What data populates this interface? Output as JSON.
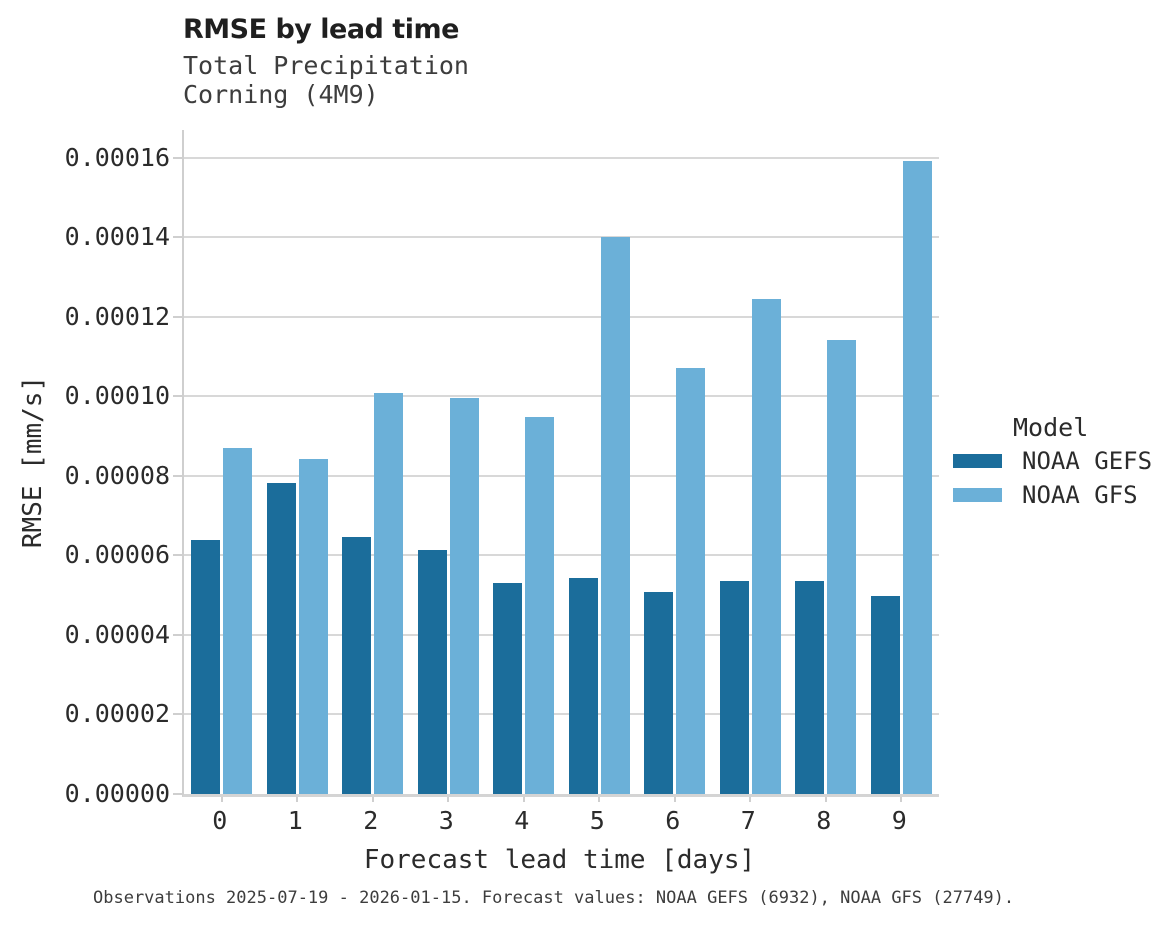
{
  "chart_data": {
    "type": "bar",
    "title": "RMSE by lead time",
    "subtitle_lines": [
      "Total Precipitation",
      "Corning (4M9)"
    ],
    "xlabel": "Forecast lead time [days]",
    "ylabel": "RMSE [mm/s]",
    "categories": [
      "0",
      "1",
      "2",
      "3",
      "4",
      "5",
      "6",
      "7",
      "8",
      "9"
    ],
    "series": [
      {
        "name": "NOAA GEFS",
        "color": "#1B6D9B",
        "values": [
          6.38e-05,
          7.82e-05,
          6.46e-05,
          6.13e-05,
          5.31e-05,
          5.43e-05,
          5.09e-05,
          5.37e-05,
          5.35e-05,
          4.97e-05
        ]
      },
      {
        "name": "NOAA GFS",
        "color": "#6BB0D8",
        "values": [
          8.7e-05,
          8.42e-05,
          0.0001008,
          9.96e-05,
          9.48e-05,
          0.00014,
          0.0001072,
          0.0001246,
          0.0001143,
          0.0001591
        ]
      }
    ],
    "ylim": [
      0,
      0.000167
    ],
    "yticks": {
      "values": [
        0,
        2e-05,
        4e-05,
        6e-05,
        8e-05,
        0.0001,
        0.00012,
        0.00014,
        0.00016
      ],
      "labels": [
        "0.00000",
        "0.00002",
        "0.00004",
        "0.00006",
        "0.00008",
        "0.00010",
        "0.00012",
        "0.00014",
        "0.00016"
      ]
    },
    "grid": "horizontal",
    "legend": {
      "title": "Model",
      "position": "right"
    },
    "caption": "Observations 2025-07-19 - 2026-01-15. Forecast values: NOAA GEFS (6932), NOAA GFS (27749)."
  },
  "style_colors": {
    "grid": "#D8D8D8",
    "axis": "#CFCFCF",
    "gefs_dark_blue": "#1B6D9B",
    "gfs_light_blue": "#6BB0D8"
  }
}
